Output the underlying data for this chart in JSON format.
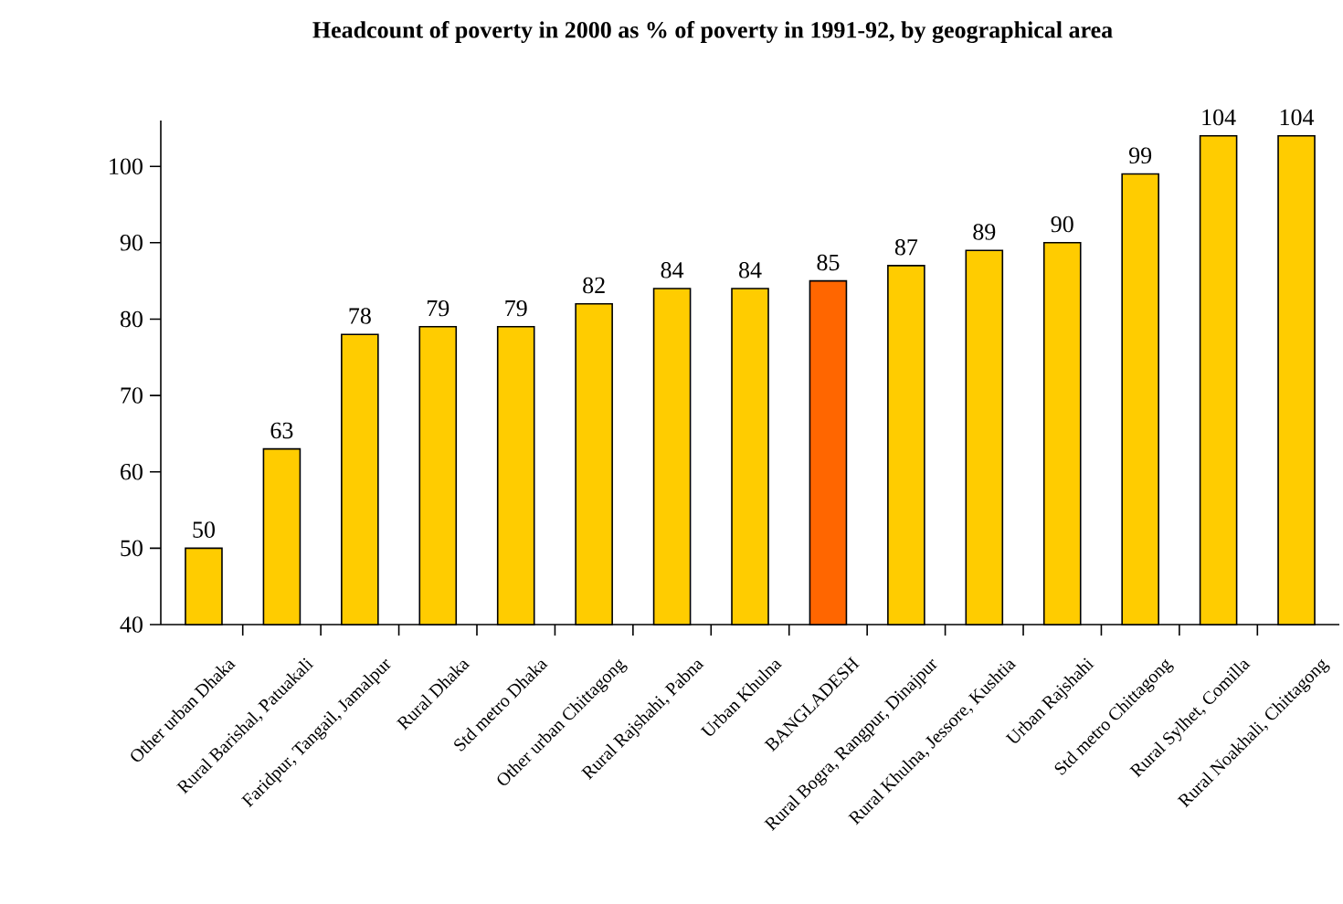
{
  "chart_data": {
    "type": "bar",
    "title": "**Headcount of poverty in 2000 as % of poverty in 1991-92, by geographical area**",
    "categories": [
      "Other urban Dhaka",
      "Rural Barishal, Patuakali",
      "Faridpur, Tangail, Jamalpur",
      "Rural Dhaka",
      "Std metro Dhaka",
      "Other urban Chittagong",
      "Rural Rajshahi, Pabna",
      "Urban Khulna",
      "BANGLADESH",
      "Rural Bogra, Rangpur, Dinajpur",
      "Rural Khulna, Jessore, Kushtia",
      "Urban Rajshahi",
      "Std metro Chittagong",
      "Rural Sylhet, Comilla",
      "Rural Noakhali, Chittagong"
    ],
    "values": [
      50,
      63,
      78,
      79,
      79,
      82,
      84,
      84,
      85,
      87,
      89,
      90,
      99,
      104,
      104
    ],
    "colors": [
      "#ffcc00",
      "#ffcc00",
      "#ffcc00",
      "#ffcc00",
      "#ffcc00",
      "#ffcc00",
      "#ffcc00",
      "#ffcc00",
      "#ff6600",
      "#ffcc00",
      "#ffcc00",
      "#ffcc00",
      "#ffcc00",
      "#ffcc00",
      "#ffcc00"
    ],
    "ylim": [
      40,
      106
    ],
    "yticks": [
      40,
      50,
      60,
      70,
      80,
      90,
      100
    ],
    "data_labels": true
  }
}
